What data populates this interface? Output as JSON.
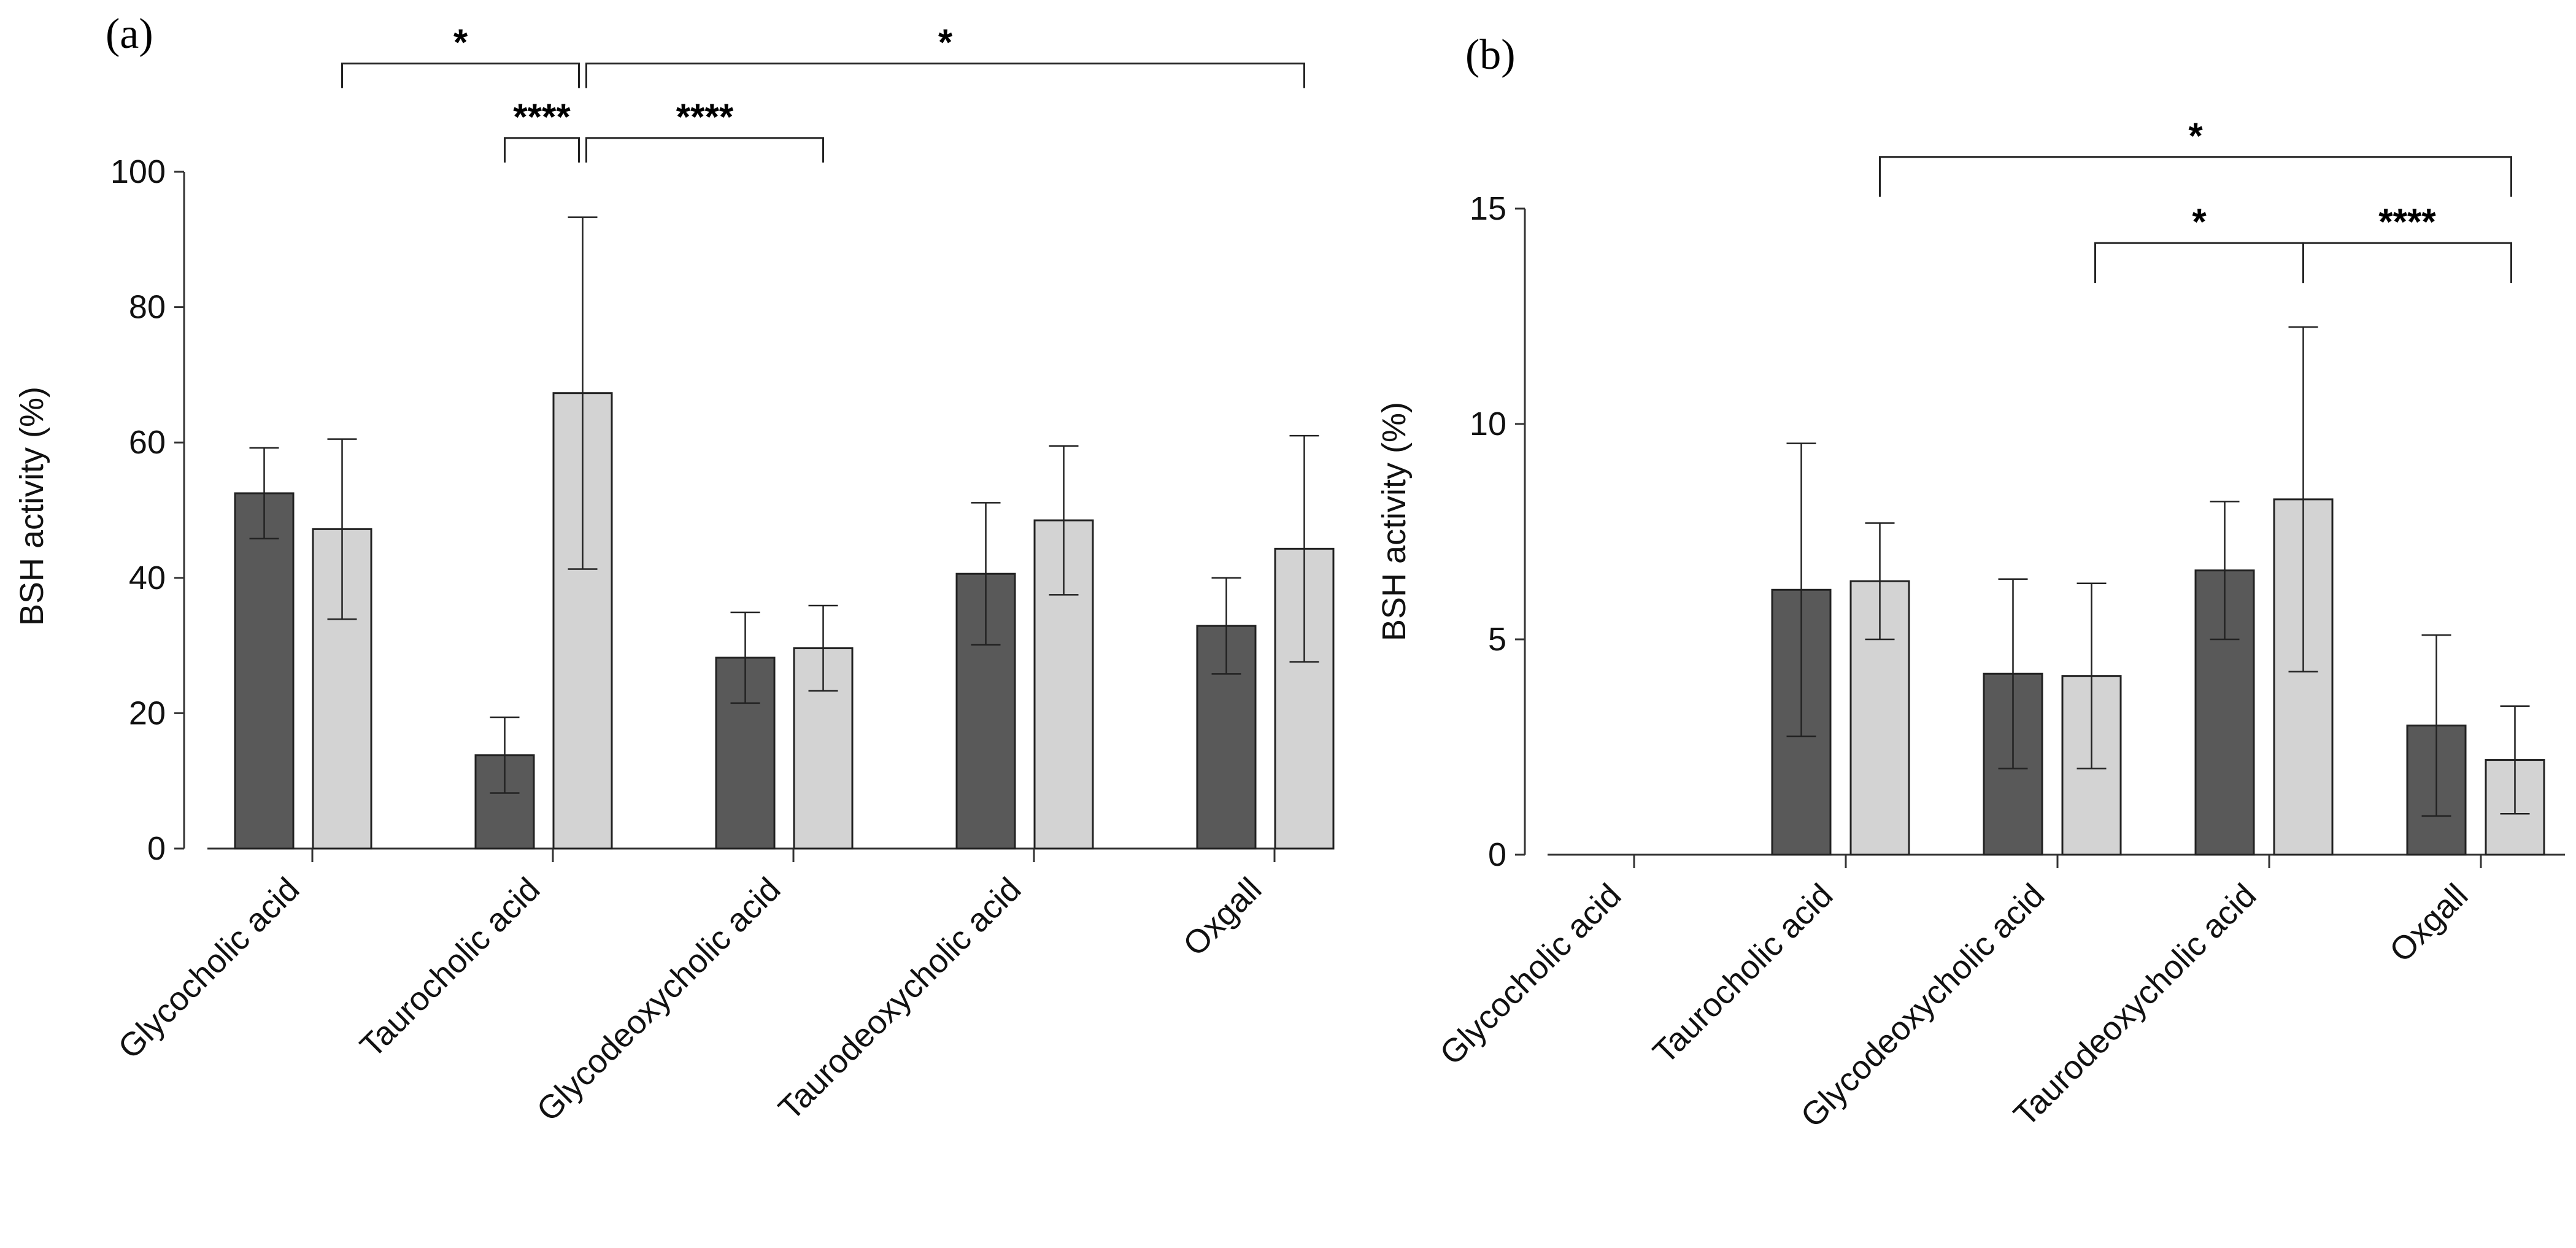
{
  "chart_data": [
    {
      "type": "bar",
      "panel_label": "(a)",
      "ylabel": "BSH activity (%)",
      "ylim": [
        0,
        100
      ],
      "yticks": [
        0,
        20,
        40,
        60,
        80,
        100
      ],
      "categories": [
        "Glycocholic acid",
        "Taurocholic acid",
        "Glycodeoxycholic acid",
        "Taurodeoxycholic acid",
        "Oxgall"
      ],
      "series": [
        {
          "color": "#595959",
          "values": [
            52.5,
            13.8,
            28.2,
            40.6,
            32.9
          ],
          "errors": [
            6.7,
            5.6,
            6.7,
            10.5,
            7.1
          ]
        },
        {
          "color": "#d3d3d3",
          "values": [
            47.2,
            67.3,
            29.6,
            48.5,
            44.3
          ],
          "errors": [
            13.3,
            26.0,
            6.3,
            11.0,
            16.7
          ]
        }
      ],
      "significance": [
        {
          "from": [
            0,
            1
          ],
          "to": [
            1,
            1
          ],
          "label": "*",
          "y": 116
        },
        {
          "from": [
            1,
            1
          ],
          "to": [
            4,
            1
          ],
          "label": "*",
          "y": 116
        },
        {
          "from": [
            1,
            0
          ],
          "to": [
            1,
            1
          ],
          "label": "****",
          "y": 105
        },
        {
          "from": [
            1,
            1
          ],
          "to": [
            2,
            1
          ],
          "label": "****",
          "y": 105
        }
      ]
    },
    {
      "type": "bar",
      "panel_label": "(b)",
      "ylabel": "BSH activity (%)",
      "ylim": [
        0,
        15
      ],
      "yticks": [
        0,
        5,
        10,
        15
      ],
      "categories": [
        "Glycocholic acid",
        "Taurocholic acid",
        "Glycodeoxycholic acid",
        "Taurodeoxycholic acid",
        "Oxgall"
      ],
      "series": [
        {
          "color": "#595959",
          "values": [
            0,
            6.15,
            4.2,
            6.6,
            3.0
          ],
          "errors": [
            0,
            3.4,
            2.2,
            1.6,
            2.1
          ]
        },
        {
          "color": "#d3d3d3",
          "values": [
            0,
            6.35,
            4.15,
            8.25,
            2.2
          ],
          "errors": [
            0,
            1.35,
            2.15,
            4.0,
            1.25
          ]
        }
      ],
      "significance": [
        {
          "from": [
            1,
            1
          ],
          "to": [
            4,
            1
          ],
          "label": "*",
          "y": 16.2
        },
        {
          "from": [
            2,
            1
          ],
          "to": [
            3,
            1
          ],
          "label": "*",
          "y": 14.2
        },
        {
          "from": [
            3,
            1
          ],
          "to": [
            4,
            1
          ],
          "label": "****",
          "y": 14.2
        }
      ]
    }
  ]
}
